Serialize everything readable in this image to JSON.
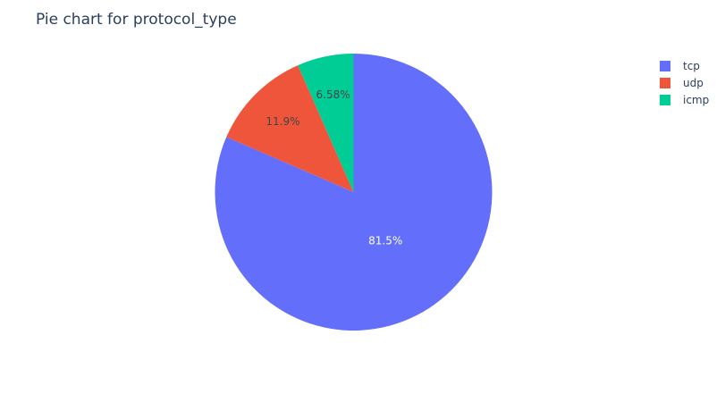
{
  "chart_data": {
    "type": "pie",
    "title": "Pie chart for protocol_type",
    "categories": [
      "tcp",
      "udp",
      "icmp"
    ],
    "values": [
      81.5,
      11.9,
      6.58
    ],
    "labels": [
      "81.5%",
      "11.9%",
      "6.58%"
    ],
    "colors": [
      "#636efa",
      "#ef553b",
      "#00cc96"
    ],
    "label_colors": [
      "#ffffff",
      "#444444",
      "#444444"
    ],
    "legend_position": "top-right"
  }
}
